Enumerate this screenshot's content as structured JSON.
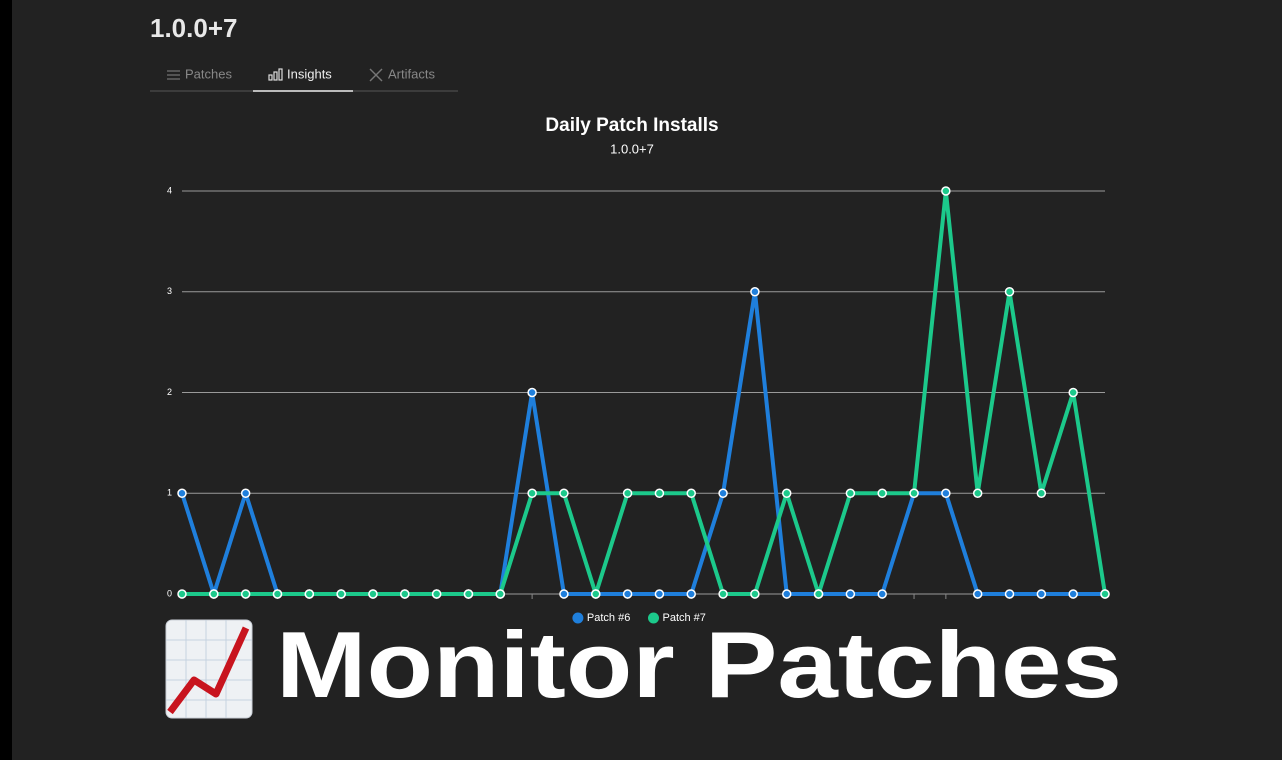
{
  "header": {
    "title": "1.0.0+7"
  },
  "tabs": [
    "Patches",
    "Insights",
    "Artifacts"
  ],
  "chart_data": {
    "type": "line",
    "title": "Daily Patch Installs",
    "subtitle": "1.0.0+7",
    "series": [
      {
        "name": "Patch #6",
        "color": "#1f7fdc",
        "values": [
          1,
          0,
          1,
          0,
          0,
          0,
          0,
          0,
          0,
          0,
          0,
          2,
          0,
          0,
          0,
          0,
          0,
          1,
          3,
          0,
          0,
          0,
          0,
          1,
          1,
          0,
          0,
          0,
          0,
          0
        ]
      },
      {
        "name": "Patch #7",
        "color": "#1cc98b",
        "values": [
          0,
          0,
          0,
          0,
          0,
          0,
          0,
          0,
          0,
          0,
          0,
          1,
          1,
          0,
          1,
          1,
          1,
          0,
          0,
          1,
          0,
          1,
          1,
          1,
          4,
          1,
          3,
          1,
          2,
          0
        ]
      }
    ],
    "ylim": [
      0,
      4
    ],
    "yticks": [
      0,
      1,
      2,
      3,
      4
    ],
    "grid": true,
    "legend": "bottom"
  },
  "banner": {
    "text": "Monitor Patches"
  }
}
